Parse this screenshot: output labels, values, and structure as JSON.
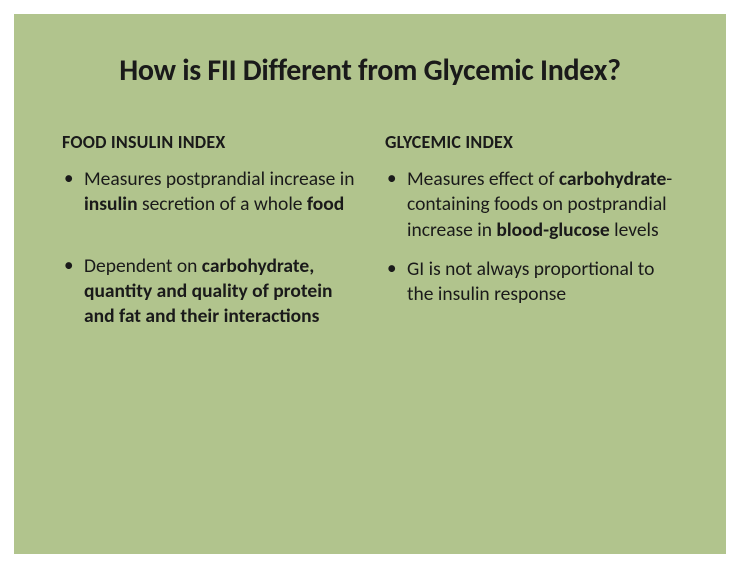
{
  "slide": {
    "background_color": "#b1c48d",
    "page_background": "#ffffff",
    "text_color": "#1a1a1a",
    "title": "How is FII Different from Glycemic Index?",
    "title_fontsize": 30,
    "title_fontweight": 700,
    "heading_fontsize": 18,
    "body_fontsize": 19.5,
    "columns": [
      {
        "heading": "FOOD INSULIN INDEX",
        "bullets": [
          {
            "segments": [
              {
                "text": "Measures postprandial increase in ",
                "bold": false
              },
              {
                "text": "insulin",
                "bold": true
              },
              {
                "text": " secretion of a whole ",
                "bold": false
              },
              {
                "text": "food",
                "bold": true
              }
            ]
          },
          {
            "segments": [
              {
                "text": "Dependent on ",
                "bold": false
              },
              {
                "text": "carbohydrate, quantity and quality of protein and fat and their interactions",
                "bold": true
              }
            ]
          }
        ]
      },
      {
        "heading": "GLYCEMIC INDEX",
        "bullets": [
          {
            "segments": [
              {
                "text": "Measures effect of ",
                "bold": false
              },
              {
                "text": "carbohydrate",
                "bold": true
              },
              {
                "text": "-containing foods on postprandial increase in ",
                "bold": false
              },
              {
                "text": "blood-glucose",
                "bold": true
              },
              {
                "text": " levels",
                "bold": false
              }
            ]
          },
          {
            "segments": [
              {
                "text": "GI is not always proportional to the insulin response",
                "bold": false
              }
            ]
          }
        ]
      }
    ]
  }
}
